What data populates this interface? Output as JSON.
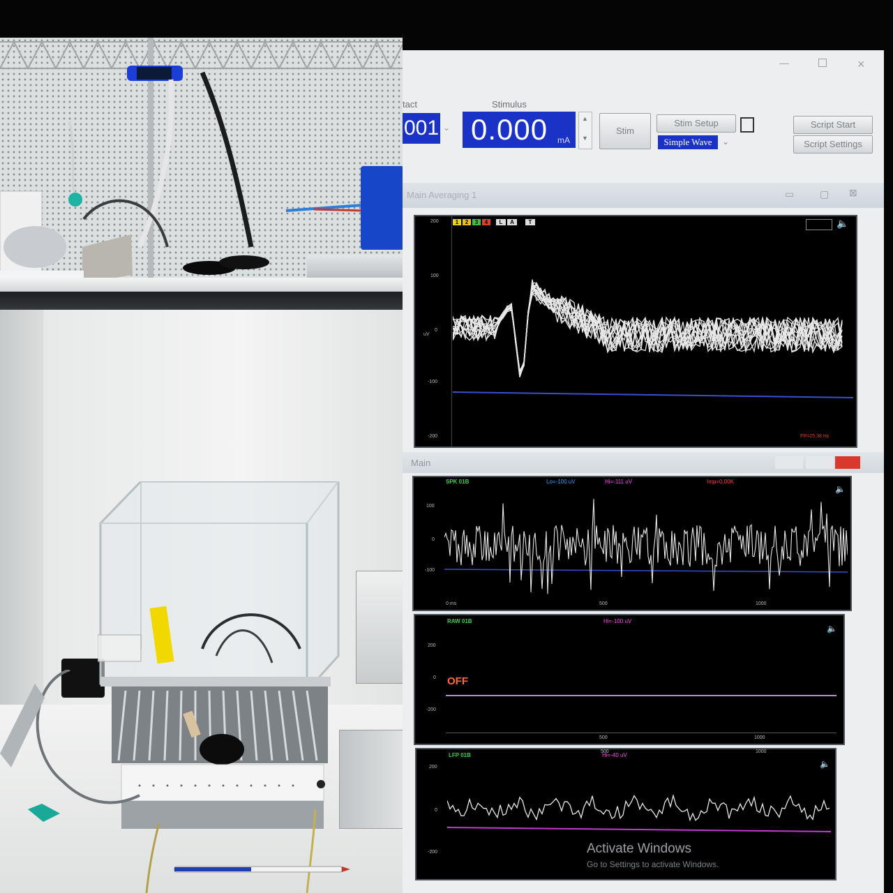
{
  "toolbar": {
    "contact_label": "tact",
    "contact_value": "001",
    "stimulus_label": "Stimulus",
    "stimulus_value": "0.000",
    "stimulus_unit": "mA",
    "stim_button": "Stim",
    "stim_setup_button": "Stim Setup",
    "wave_select": "Simple Wave",
    "script_start_button": "Script Start",
    "script_settings_button": "Script Settings"
  },
  "averaging_window": {
    "title": "Main Averaging 1",
    "channel_tabs": [
      "1",
      "2",
      "3",
      "4",
      "L",
      "A",
      "T"
    ],
    "y_ticks": [
      "200",
      "100",
      "0",
      "-100",
      "-200"
    ],
    "y_unit": "uV",
    "readout": "FR=25.38 Hz"
  },
  "main_window": {
    "title": "Main",
    "traces": [
      {
        "name": "SPK 01B",
        "info": [
          "Lo=-100 uV",
          "Hi=-111 uV",
          "Imp=0.00K"
        ],
        "status": "",
        "ticks": [
          "100",
          "0",
          "-100"
        ],
        "xticks": [
          "0 ms",
          "500",
          "1000"
        ]
      },
      {
        "name": "RAW 01B",
        "info": [
          "Hi=-100 uV"
        ],
        "status": "OFF",
        "ticks": [
          "200",
          "0",
          "-200"
        ],
        "xticks": [
          "500",
          "1000"
        ]
      },
      {
        "name": "LFP 01B",
        "info": [
          "Hi=-40 uV"
        ],
        "status": "",
        "ticks": [
          "200",
          "0",
          "-200"
        ],
        "xticks": [
          "500",
          "1000"
        ]
      }
    ]
  },
  "watermark": {
    "line1": "Activate Windows",
    "line2": "Go to Settings to activate Windows."
  },
  "colors": {
    "trace": "#e8e8e8",
    "baseline": "#3a4fd0",
    "lfp_baseline": "#c23bd1",
    "field": "#1a33c6",
    "stop_red": "#d9382c"
  },
  "icons": [
    "close-icon",
    "maximize-icon",
    "minimize-icon",
    "speaker-icon",
    "mouse-icon"
  ]
}
